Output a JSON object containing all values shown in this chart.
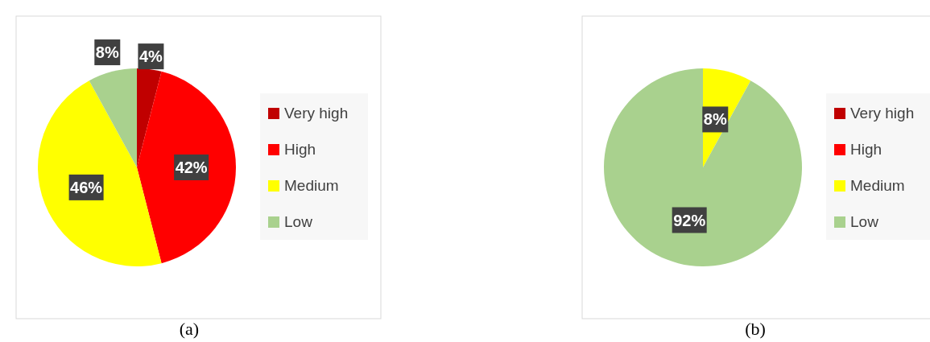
{
  "chart_data": [
    {
      "type": "pie",
      "title": "(a)",
      "categories": [
        "Very high",
        "High",
        "Medium",
        "Low"
      ],
      "values": [
        4,
        42,
        46,
        8
      ],
      "value_labels": [
        "4%",
        "42%",
        "46%",
        "8%"
      ],
      "colors": [
        "#c00000",
        "#ff0000",
        "#ffff00",
        "#a9d18e"
      ],
      "legend": "right"
    },
    {
      "type": "pie",
      "title": "(b)",
      "categories": [
        "Very high",
        "High",
        "Medium",
        "Low"
      ],
      "values": [
        0,
        0,
        8,
        92
      ],
      "value_labels": [
        null,
        null,
        "8%",
        "92%"
      ],
      "colors": [
        "#c00000",
        "#ff0000",
        "#ffff00",
        "#a9d18e"
      ],
      "legend": "right"
    }
  ]
}
